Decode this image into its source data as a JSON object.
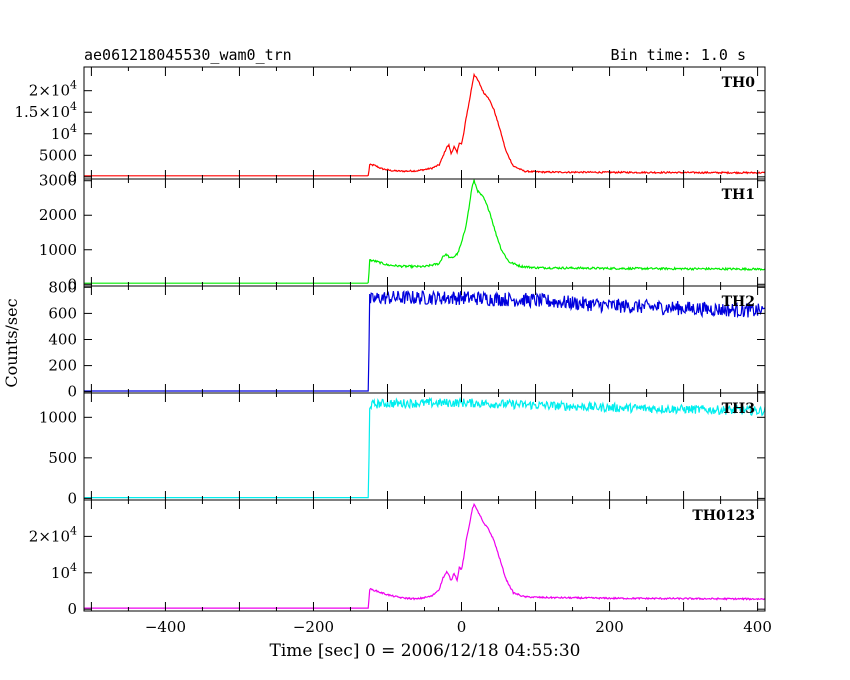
{
  "header": {
    "left": "ae061218045530_wam0_trn",
    "right": "Bin time: 1.0 s"
  },
  "chart_data": {
    "type": "line",
    "title": "ae061218045530_wam0_trn",
    "bin_time": "Bin time: 1.0 s",
    "xlabel": "Time [sec] 0 = 2006/12/18 04:55:30",
    "ylabel": "Counts/sec",
    "xlim": [
      -510,
      410
    ],
    "x_ticks": [
      -400,
      -200,
      0,
      200,
      400
    ],
    "x_tick_labels": [
      "−400",
      "−200",
      "0",
      "200",
      "400"
    ],
    "grid": false,
    "trigger_time": -125,
    "panels": [
      {
        "name": "TH0",
        "color": "#ff0000",
        "ylim": [
          -500,
          25500
        ],
        "ytick_labels": [
          {
            "v": 0,
            "t": "0"
          },
          {
            "v": 5000,
            "t": "5000"
          },
          {
            "v": 10000,
            "t": "10",
            "exp": "4"
          },
          {
            "v": 15000,
            "t": "1.5×10",
            "exp": "4"
          },
          {
            "v": 20000,
            "t": "2×10",
            "exp": "4"
          }
        ],
        "points": [
          [
            -510,
            250
          ],
          [
            -126,
            250
          ],
          [
            -124,
            2800
          ],
          [
            -118,
            2700
          ],
          [
            -108,
            1900
          ],
          [
            -95,
            1450
          ],
          [
            -80,
            1300
          ],
          [
            -60,
            1400
          ],
          [
            -40,
            2000
          ],
          [
            -30,
            2800
          ],
          [
            -25,
            4800
          ],
          [
            -20,
            6900
          ],
          [
            -17,
            7300
          ],
          [
            -14,
            5400
          ],
          [
            -10,
            7000
          ],
          [
            -6,
            5600
          ],
          [
            -3,
            8000
          ],
          [
            0,
            7600
          ],
          [
            3,
            10000
          ],
          [
            6,
            13500
          ],
          [
            10,
            17000
          ],
          [
            14,
            21000
          ],
          [
            17,
            23800
          ],
          [
            20,
            23000
          ],
          [
            24,
            21800
          ],
          [
            30,
            19500
          ],
          [
            36,
            18500
          ],
          [
            44,
            15500
          ],
          [
            52,
            11000
          ],
          [
            60,
            6000
          ],
          [
            70,
            2500
          ],
          [
            85,
            1300
          ],
          [
            110,
            1100
          ],
          [
            200,
            1050
          ],
          [
            300,
            1000
          ],
          [
            400,
            950
          ]
        ],
        "noise": 180,
        "band_start": -126
      },
      {
        "name": "TH1",
        "color": "#00ee00",
        "ylim": [
          -50,
          3050
        ],
        "ytick_labels": [
          {
            "v": 0,
            "t": "0"
          },
          {
            "v": 1000,
            "t": "1000"
          },
          {
            "v": 2000,
            "t": "2000"
          },
          {
            "v": 3000,
            "t": "3000"
          }
        ],
        "points": [
          [
            -510,
            30
          ],
          [
            -126,
            30
          ],
          [
            -124,
            700
          ],
          [
            -115,
            660
          ],
          [
            -100,
            560
          ],
          [
            -80,
            520
          ],
          [
            -50,
            510
          ],
          [
            -30,
            600
          ],
          [
            -25,
            820
          ],
          [
            -20,
            860
          ],
          [
            -15,
            750
          ],
          [
            -10,
            800
          ],
          [
            -5,
            900
          ],
          [
            0,
            1200
          ],
          [
            5,
            1600
          ],
          [
            10,
            2200
          ],
          [
            14,
            2800
          ],
          [
            17,
            3000
          ],
          [
            22,
            2700
          ],
          [
            30,
            2500
          ],
          [
            38,
            2100
          ],
          [
            46,
            1500
          ],
          [
            54,
            1000
          ],
          [
            64,
            650
          ],
          [
            80,
            520
          ],
          [
            100,
            480
          ],
          [
            200,
            460
          ],
          [
            300,
            450
          ],
          [
            400,
            440
          ]
        ],
        "noise": 30,
        "band_start": -126
      },
      {
        "name": "TH2",
        "color": "#0000dd",
        "ylim": [
          -10,
          810
        ],
        "ytick_labels": [
          {
            "v": 0,
            "t": "0"
          },
          {
            "v": 200,
            "t": "200"
          },
          {
            "v": 400,
            "t": "400"
          },
          {
            "v": 600,
            "t": "600"
          },
          {
            "v": 800,
            "t": "800"
          }
        ],
        "points": [
          [
            -510,
            5
          ],
          [
            -126,
            5
          ],
          [
            -125,
            330
          ],
          [
            -124,
            700
          ],
          [
            -110,
            720
          ],
          [
            0,
            720
          ],
          [
            100,
            700
          ],
          [
            200,
            660
          ],
          [
            300,
            640
          ],
          [
            400,
            620
          ]
        ],
        "noise": 55,
        "band_start": -124
      },
      {
        "name": "TH3",
        "color": "#00eeee",
        "ylim": [
          -20,
          1300
        ],
        "ytick_labels": [
          {
            "v": 0,
            "t": "0"
          },
          {
            "v": 500,
            "t": "500"
          },
          {
            "v": 1000,
            "t": "1000"
          }
        ],
        "points": [
          [
            -510,
            10
          ],
          [
            -126,
            10
          ],
          [
            -125,
            500
          ],
          [
            -124,
            1150
          ],
          [
            -110,
            1170
          ],
          [
            0,
            1180
          ],
          [
            100,
            1150
          ],
          [
            200,
            1120
          ],
          [
            300,
            1100
          ],
          [
            400,
            1080
          ]
        ],
        "noise": 55,
        "band_start": -124
      },
      {
        "name": "TH0123",
        "color": "#ee00ee",
        "ylim": [
          -500,
          30000
        ],
        "ytick_labels": [
          {
            "v": 0,
            "t": "0"
          },
          {
            "v": 10000,
            "t": "10",
            "exp": "4"
          },
          {
            "v": 20000,
            "t": "2×10",
            "exp": "4"
          }
        ],
        "points": [
          [
            -510,
            300
          ],
          [
            -126,
            300
          ],
          [
            -124,
            5500
          ],
          [
            -118,
            5200
          ],
          [
            -108,
            4500
          ],
          [
            -95,
            3700
          ],
          [
            -80,
            3100
          ],
          [
            -60,
            2800
          ],
          [
            -40,
            3600
          ],
          [
            -30,
            5500
          ],
          [
            -25,
            8600
          ],
          [
            -20,
            10200
          ],
          [
            -17,
            9300
          ],
          [
            -14,
            7800
          ],
          [
            -10,
            10000
          ],
          [
            -6,
            8000
          ],
          [
            -3,
            11500
          ],
          [
            0,
            11000
          ],
          [
            3,
            14000
          ],
          [
            6,
            18500
          ],
          [
            10,
            22500
          ],
          [
            14,
            27000
          ],
          [
            17,
            29000
          ],
          [
            20,
            27500
          ],
          [
            24,
            26200
          ],
          [
            30,
            23500
          ],
          [
            36,
            22200
          ],
          [
            44,
            18800
          ],
          [
            52,
            13600
          ],
          [
            60,
            8300
          ],
          [
            70,
            4500
          ],
          [
            85,
            3400
          ],
          [
            110,
            3200
          ],
          [
            200,
            3000
          ],
          [
            300,
            2900
          ],
          [
            400,
            2800
          ]
        ],
        "noise": 220,
        "band_start": -126
      }
    ]
  }
}
